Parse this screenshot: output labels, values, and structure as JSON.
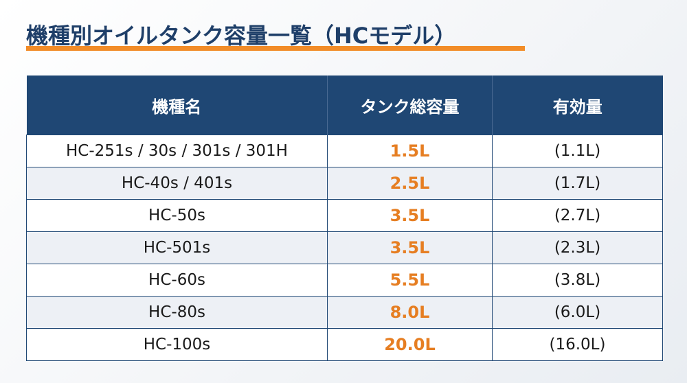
{
  "title": "機種別オイルタンク容量一覧（HCモデル）",
  "colors": {
    "header_bg": "#1f4774",
    "accent": "#f28c28",
    "capacity_text": "#e67e22",
    "title_text": "#1f3f69"
  },
  "table": {
    "headers": [
      "機種名",
      "タンク総容量",
      "有効量"
    ],
    "rows": [
      {
        "model": "HC-251s / 30s / 301s / 301H",
        "capacity": "1.5L",
        "effective": "(1.1L)"
      },
      {
        "model": "HC-40s / 401s",
        "capacity": "2.5L",
        "effective": "(1.7L)"
      },
      {
        "model": "HC-50s",
        "capacity": "3.5L",
        "effective": "(2.7L)"
      },
      {
        "model": "HC-501s",
        "capacity": "3.5L",
        "effective": "(2.3L)"
      },
      {
        "model": "HC-60s",
        "capacity": "5.5L",
        "effective": "(3.8L)"
      },
      {
        "model": "HC-80s",
        "capacity": "8.0L",
        "effective": "(6.0L)"
      },
      {
        "model": "HC-100s",
        "capacity": "20.0L",
        "effective": "(16.0L)"
      }
    ]
  }
}
